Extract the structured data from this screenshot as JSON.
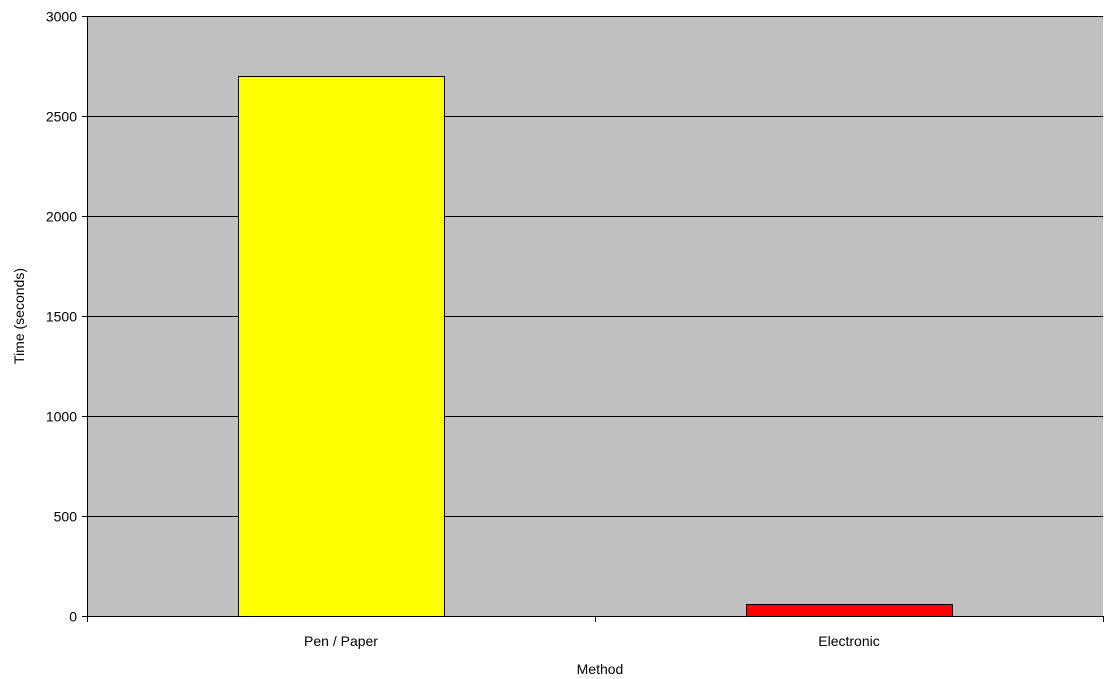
{
  "chart_data": {
    "type": "bar",
    "title": "",
    "xlabel": "Method",
    "ylabel": "Time (seconds)",
    "categories": [
      "Pen / Paper",
      "Electronic"
    ],
    "values": [
      2700,
      60
    ],
    "bar_colors": [
      "#ffff00",
      "#ff0000"
    ],
    "ylim": [
      0,
      3000
    ],
    "yticks": [
      0,
      500,
      1000,
      1500,
      2000,
      2500,
      3000
    ],
    "grid": true,
    "legend": "none",
    "colors": {
      "plot_background": "#c0c0c0",
      "gridline": "#000000",
      "bar_border": "#000000"
    }
  }
}
